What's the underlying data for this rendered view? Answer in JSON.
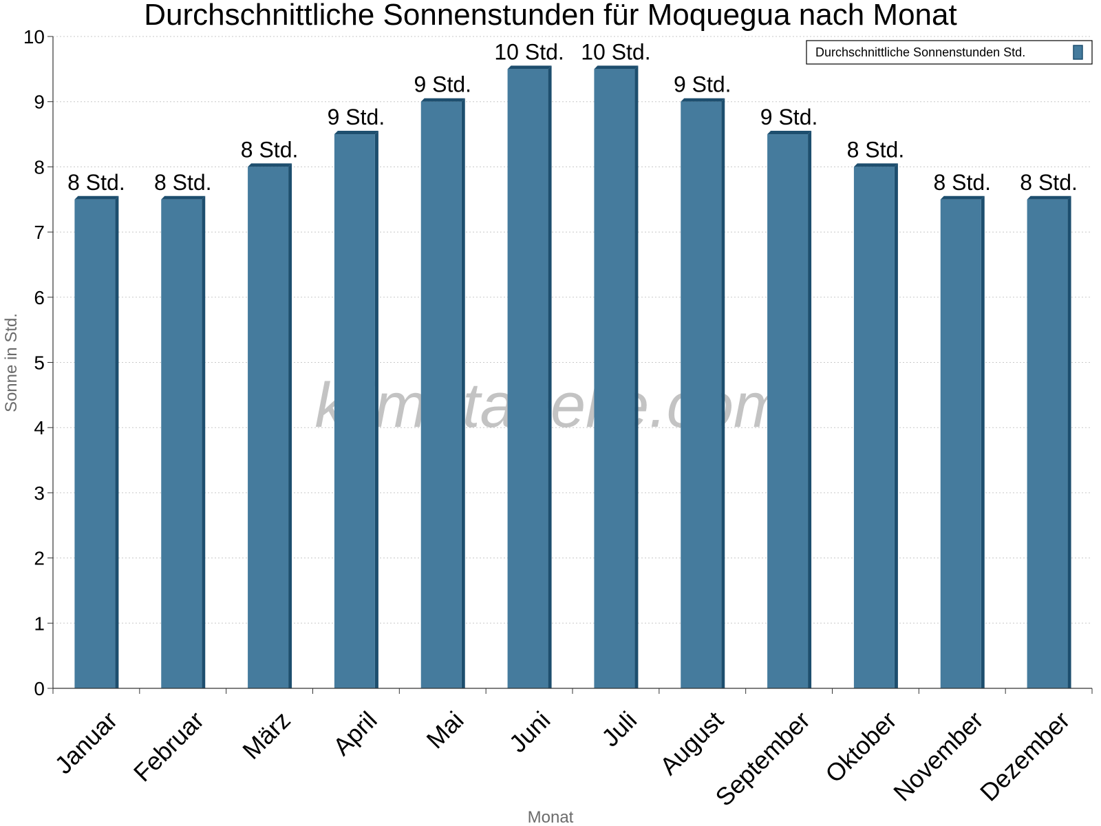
{
  "chart_data": {
    "type": "bar",
    "title": "Durchschnittliche Sonnenstunden für Moquegua nach Monat",
    "xlabel": "Monat",
    "ylabel": "Sonne in Std.",
    "ylim": [
      0,
      10
    ],
    "yticks": [
      0,
      1,
      2,
      3,
      4,
      5,
      6,
      7,
      8,
      9,
      10
    ],
    "grid": true,
    "legend_position": "top-right",
    "categories": [
      "Januar",
      "Februar",
      "März",
      "April",
      "Mai",
      "Juni",
      "Juli",
      "August",
      "September",
      "Oktober",
      "November",
      "Dezember"
    ],
    "series": [
      {
        "name": "Durchschnittliche Sonnenstunden Std.",
        "values": [
          7.5,
          7.5,
          8,
          8.5,
          9,
          9.5,
          9.5,
          9,
          8.5,
          8,
          7.5,
          7.5
        ],
        "labels": [
          "8 Std.",
          "8 Std.",
          "8 Std.",
          "9 Std.",
          "9 Std.",
          "10 Std.",
          "10 Std.",
          "9 Std.",
          "9 Std.",
          "8 Std.",
          "8 Std.",
          "8 Std."
        ],
        "color": "#457b9d",
        "edge_color": "#1d4e6e"
      }
    ]
  },
  "watermark": "klimatabelle.com"
}
